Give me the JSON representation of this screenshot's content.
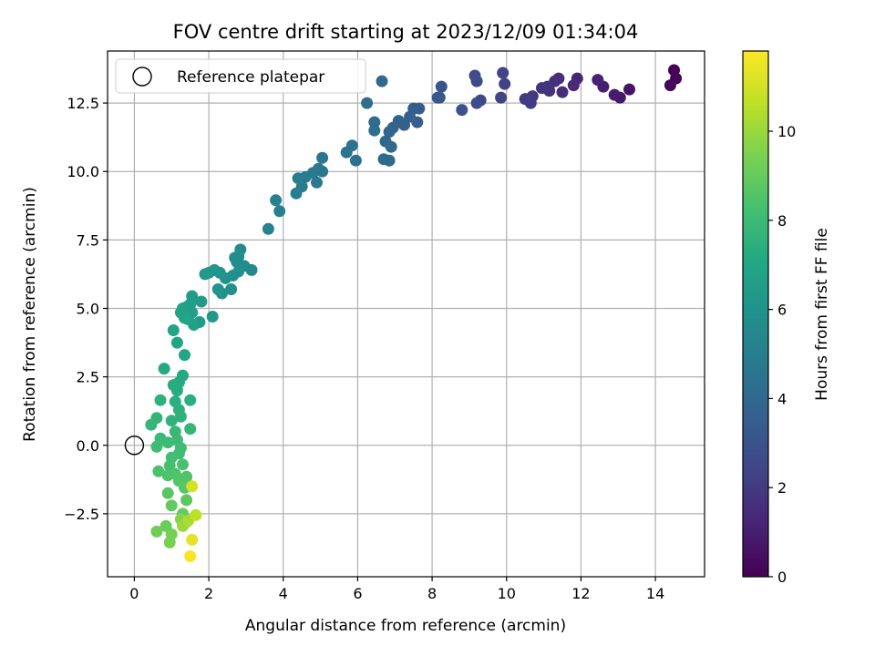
{
  "chart_data": {
    "type": "scatter",
    "title": "FOV centre drift starting at 2023/12/09 01:34:04",
    "xlabel": "Angular distance from reference (arcmin)",
    "ylabel": "Rotation from reference (arcmin)",
    "xlim": [
      -0.72,
      15.32
    ],
    "ylim": [
      -4.8,
      14.4
    ],
    "xticks": [
      0,
      2,
      4,
      6,
      8,
      10,
      12,
      14
    ],
    "xtick_labels": [
      "0",
      "2",
      "4",
      "6",
      "8",
      "10",
      "12",
      "14"
    ],
    "yticks": [
      -2.5,
      0.0,
      2.5,
      5.0,
      7.5,
      10.0,
      12.5
    ],
    "ytick_labels": [
      "−2.5",
      "0.0",
      "2.5",
      "5.0",
      "7.5",
      "10.0",
      "12.5"
    ],
    "grid": true,
    "legend": {
      "position": "upper-left",
      "entries": [
        "Reference platepar"
      ]
    },
    "reference_point": {
      "x": 0,
      "y": 0
    },
    "colorbar": {
      "label": "Hours from first FF file",
      "range": [
        0,
        11.8
      ],
      "ticks": [
        0,
        2,
        4,
        6,
        8,
        10
      ],
      "tick_labels": [
        "0",
        "2",
        "4",
        "6",
        "8",
        "10"
      ],
      "colormap": "viridis"
    },
    "points": [
      [
        14.5,
        13.7,
        0.0
      ],
      [
        14.55,
        13.4,
        0.1
      ],
      [
        14.4,
        13.15,
        0.2
      ],
      [
        13.3,
        13.0,
        0.6
      ],
      [
        13.05,
        12.7,
        0.8
      ],
      [
        12.9,
        12.8,
        0.9
      ],
      [
        12.6,
        13.1,
        1.0
      ],
      [
        12.45,
        13.35,
        1.1
      ],
      [
        11.9,
        13.4,
        1.3
      ],
      [
        11.8,
        13.15,
        1.4
      ],
      [
        11.5,
        12.9,
        1.5
      ],
      [
        11.4,
        13.4,
        1.55
      ],
      [
        11.3,
        13.3,
        1.6
      ],
      [
        11.15,
        12.95,
        1.7
      ],
      [
        11.1,
        13.1,
        1.75
      ],
      [
        10.95,
        13.05,
        1.8
      ],
      [
        10.7,
        12.75,
        1.9
      ],
      [
        10.65,
        12.5,
        2.0
      ],
      [
        10.5,
        12.65,
        2.05
      ],
      [
        9.95,
        13.2,
        2.3
      ],
      [
        9.9,
        13.6,
        2.35
      ],
      [
        9.85,
        12.7,
        2.4
      ],
      [
        9.3,
        12.6,
        2.6
      ],
      [
        9.2,
        13.3,
        2.65
      ],
      [
        9.15,
        13.5,
        2.7
      ],
      [
        9.2,
        12.5,
        2.75
      ],
      [
        8.8,
        12.25,
        2.95
      ],
      [
        8.25,
        13.1,
        3.1
      ],
      [
        8.2,
        12.7,
        3.15
      ],
      [
        8.15,
        12.7,
        3.2
      ],
      [
        7.65,
        12.3,
        3.4
      ],
      [
        7.6,
        11.8,
        3.45
      ],
      [
        7.5,
        12.3,
        3.5
      ],
      [
        7.4,
        12.0,
        3.55
      ],
      [
        7.25,
        11.7,
        3.6
      ],
      [
        7.1,
        11.85,
        3.7
      ],
      [
        6.95,
        11.6,
        3.8
      ],
      [
        6.85,
        11.45,
        3.85
      ],
      [
        6.75,
        11.1,
        3.9
      ],
      [
        6.65,
        13.3,
        3.95
      ],
      [
        6.9,
        10.9,
        4.0
      ],
      [
        6.85,
        10.4,
        4.05
      ],
      [
        6.7,
        10.45,
        4.1
      ],
      [
        6.45,
        11.8,
        4.15
      ],
      [
        6.45,
        11.5,
        4.2
      ],
      [
        6.25,
        12.5,
        4.3
      ],
      [
        5.95,
        10.4,
        4.4
      ],
      [
        5.85,
        10.95,
        4.45
      ],
      [
        5.7,
        10.7,
        4.5
      ],
      [
        5.05,
        10.5,
        4.6
      ],
      [
        5.05,
        10.0,
        4.65
      ],
      [
        4.95,
        10.1,
        4.7
      ],
      [
        4.9,
        9.6,
        4.75
      ],
      [
        4.8,
        9.95,
        4.8
      ],
      [
        4.6,
        9.8,
        4.85
      ],
      [
        4.5,
        9.45,
        4.9
      ],
      [
        4.4,
        9.75,
        4.95
      ],
      [
        4.35,
        9.2,
        5.0
      ],
      [
        3.9,
        8.55,
        5.1
      ],
      [
        3.8,
        8.95,
        5.15
      ],
      [
        3.6,
        7.9,
        5.2
      ],
      [
        3.15,
        6.4,
        5.5
      ],
      [
        2.95,
        6.55,
        5.55
      ],
      [
        2.85,
        7.15,
        5.6
      ],
      [
        2.8,
        6.9,
        5.65
      ],
      [
        2.75,
        6.7,
        5.7
      ],
      [
        2.7,
        6.85,
        5.75
      ],
      [
        2.8,
        6.35,
        5.8
      ],
      [
        2.65,
        6.2,
        5.85
      ],
      [
        2.6,
        5.7,
        5.9
      ],
      [
        2.45,
        6.1,
        5.95
      ],
      [
        2.35,
        5.55,
        6.0
      ],
      [
        2.25,
        5.7,
        6.05
      ],
      [
        2.3,
        6.3,
        6.1
      ],
      [
        2.15,
        6.4,
        6.15
      ],
      [
        2.0,
        6.3,
        6.2
      ],
      [
        1.9,
        6.25,
        6.25
      ],
      [
        2.1,
        4.7,
        6.3
      ],
      [
        1.8,
        5.25,
        6.35
      ],
      [
        1.75,
        4.5,
        6.4
      ],
      [
        1.55,
        5.45,
        6.45
      ],
      [
        1.5,
        5.15,
        6.5
      ],
      [
        1.4,
        5.05,
        6.55
      ],
      [
        1.55,
        4.85,
        6.6
      ],
      [
        1.45,
        4.6,
        6.65
      ],
      [
        1.6,
        4.4,
        6.7
      ],
      [
        1.3,
        5.0,
        6.75
      ],
      [
        1.25,
        4.85,
        6.8
      ],
      [
        1.35,
        4.65,
        6.85
      ],
      [
        1.05,
        4.2,
        6.9
      ],
      [
        1.15,
        3.75,
        6.95
      ],
      [
        1.35,
        3.3,
        7.0
      ],
      [
        0.8,
        2.8,
        7.1
      ],
      [
        1.3,
        2.55,
        7.15
      ],
      [
        1.2,
        2.3,
        7.2
      ],
      [
        1.15,
        2.0,
        7.25
      ],
      [
        1.05,
        2.2,
        7.3
      ],
      [
        1.5,
        1.65,
        7.35
      ],
      [
        1.1,
        1.6,
        7.4
      ],
      [
        1.2,
        1.3,
        7.45
      ],
      [
        0.7,
        1.65,
        7.5
      ],
      [
        1.25,
        1.05,
        7.55
      ],
      [
        1.0,
        0.9,
        7.6
      ],
      [
        0.6,
        1.0,
        7.7
      ],
      [
        0.45,
        0.75,
        7.75
      ],
      [
        1.5,
        0.6,
        7.8
      ],
      [
        1.1,
        0.5,
        7.85
      ],
      [
        0.7,
        0.25,
        7.9
      ],
      [
        1.15,
        0.2,
        7.95
      ],
      [
        0.9,
        0.1,
        8.0
      ],
      [
        1.25,
        -0.1,
        8.05
      ],
      [
        0.6,
        -0.05,
        8.1
      ],
      [
        1.2,
        -0.3,
        8.15
      ],
      [
        1.0,
        -0.45,
        8.2
      ],
      [
        0.95,
        -0.75,
        8.3
      ],
      [
        1.3,
        -0.7,
        8.35
      ],
      [
        0.65,
        -0.95,
        8.4
      ],
      [
        1.1,
        -1.05,
        8.45
      ],
      [
        0.9,
        -1.1,
        8.5
      ],
      [
        1.4,
        -1.15,
        8.55
      ],
      [
        1.2,
        -1.3,
        8.6
      ],
      [
        1.35,
        -1.55,
        8.7
      ],
      [
        0.9,
        -1.75,
        8.75
      ],
      [
        1.4,
        -2.0,
        8.8
      ],
      [
        1.0,
        -2.2,
        8.9
      ],
      [
        1.3,
        -2.5,
        9.0
      ],
      [
        0.85,
        -2.95,
        9.1
      ],
      [
        0.6,
        -3.15,
        9.2
      ],
      [
        1.0,
        -3.25,
        9.3
      ],
      [
        0.95,
        -3.55,
        9.4
      ],
      [
        1.25,
        -2.7,
        9.6
      ],
      [
        1.4,
        -2.8,
        9.8
      ],
      [
        1.3,
        -2.95,
        10.0
      ],
      [
        1.45,
        -2.75,
        10.3
      ],
      [
        1.65,
        -2.55,
        10.6
      ],
      [
        1.55,
        -1.5,
        11.0
      ],
      [
        1.55,
        -3.45,
        11.3
      ],
      [
        1.5,
        -4.05,
        11.7
      ]
    ]
  }
}
